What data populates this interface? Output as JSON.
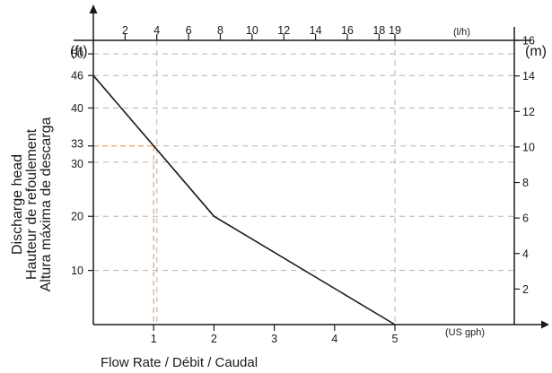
{
  "chart_data": {
    "type": "line",
    "xlabel": "Flow Rate / Débit / Caudal",
    "ylabel_lines": [
      "Discharge head",
      "Hauteur de refoulement",
      "Altura máxima de descarga"
    ],
    "axes": {
      "bottom": {
        "unit": "(US gph)",
        "min": 0,
        "max": 5,
        "ticks": [
          1,
          2,
          3,
          4,
          5
        ]
      },
      "top": {
        "unit": "(l/h)",
        "min": 0,
        "max": 19,
        "ticks": [
          2,
          4,
          6,
          8,
          10,
          12,
          14,
          16,
          18,
          19
        ]
      },
      "left": {
        "unit": "(ft)",
        "min": 0,
        "max": 52.5,
        "ticks": [
          10,
          20,
          30,
          33,
          40,
          46,
          50
        ]
      },
      "right": {
        "unit": "(m)",
        "min": 0,
        "max": 16,
        "ticks": [
          2,
          4,
          6,
          8,
          10,
          12,
          14,
          16
        ]
      }
    },
    "grid": {
      "horizontal_ft": [
        10,
        20,
        30,
        33,
        40,
        46,
        50
      ],
      "vertical_lh": [
        4,
        19
      ]
    },
    "series": [
      {
        "x": [
          0,
          1,
          2,
          5
        ],
        "y": [
          46,
          33,
          20,
          0
        ]
      }
    ],
    "highlight": {
      "x": 1,
      "y": 33
    },
    "colors": {
      "curve": "#1a1a1a",
      "axis": "#1a1a1a",
      "grid": "#b3b3b3",
      "highlight": "#f0a060"
    }
  }
}
